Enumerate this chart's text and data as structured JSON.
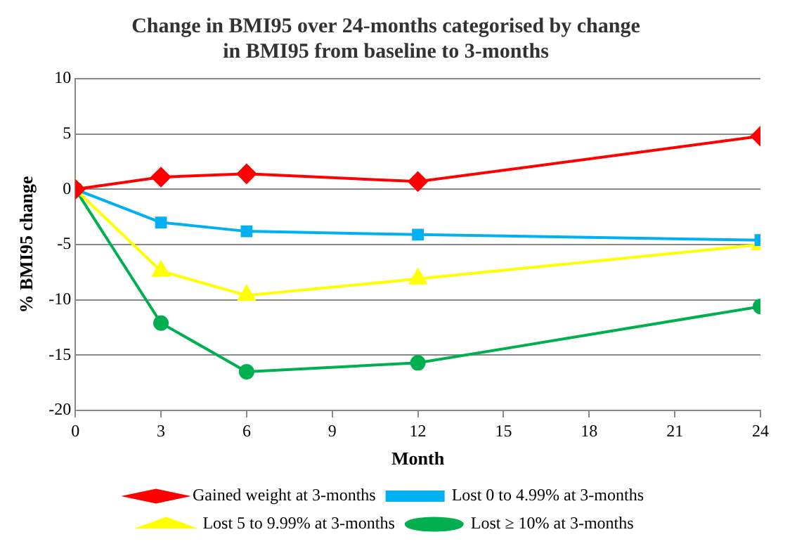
{
  "chart_data": {
    "type": "line",
    "title": "Change in BMI95 over 24-months categorised by change\nin BMI95 from baseline to 3-months",
    "xlabel": "Month",
    "ylabel": "% BMI95 change",
    "x": [
      0,
      3,
      6,
      12,
      24
    ],
    "series": [
      {
        "name": "Gained weight at 3-months",
        "color": "#ff0000",
        "marker": "diamond",
        "values": [
          0,
          1.1,
          1.4,
          0.7,
          4.8
        ]
      },
      {
        "name": "Lost 0 to 4.99% at 3-months",
        "color": "#00b0f0",
        "marker": "square",
        "values": [
          0,
          -3.0,
          -3.8,
          -4.1,
          -4.6
        ]
      },
      {
        "name": "Lost 5 to 9.99% at 3-months",
        "color": "#ffff00",
        "marker": "triangle",
        "values": [
          0,
          -7.4,
          -9.6,
          -8.1,
          -5.0
        ]
      },
      {
        "name": "Lost ≥ 10% at 3-months",
        "color": "#00b050",
        "marker": "circle",
        "values": [
          0,
          -12.1,
          -16.5,
          -15.7,
          -10.6
        ]
      }
    ],
    "xlim": [
      0,
      24
    ],
    "xticks": [
      0,
      3,
      6,
      9,
      12,
      15,
      18,
      21,
      24
    ],
    "ylim": [
      -20,
      10
    ],
    "yticks": [
      -20,
      -15,
      -10,
      -5,
      0,
      5,
      10
    ],
    "grid": "y",
    "legend": "bottom"
  }
}
